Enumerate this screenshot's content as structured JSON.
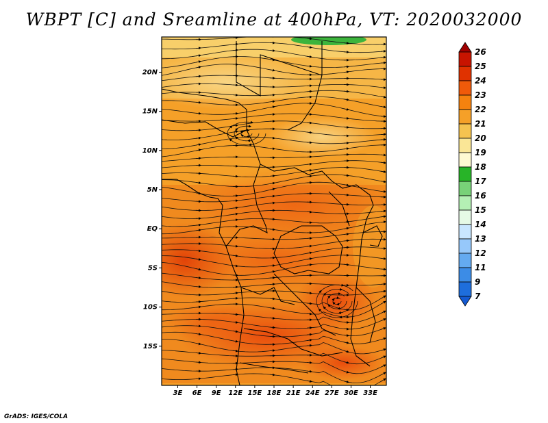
{
  "title": "WBPT [C] and Sreamline at 400hPa, VT: 2020032000",
  "footer": "GrADS: IGES/COLA",
  "map": {
    "region": "Central Africa",
    "lat_range": [
      -20,
      24.5
    ],
    "lon_range": [
      0.5,
      35.5
    ],
    "lat_ticks": [
      {
        "value": 20,
        "label": "20N"
      },
      {
        "value": 15,
        "label": "15N"
      },
      {
        "value": 10,
        "label": "10N"
      },
      {
        "value": 5,
        "label": "5N"
      },
      {
        "value": 0,
        "label": "EQ"
      },
      {
        "value": -5,
        "label": "5S"
      },
      {
        "value": -10,
        "label": "10S"
      },
      {
        "value": -15,
        "label": "15S"
      }
    ],
    "lon_ticks": [
      {
        "value": 3,
        "label": "3E"
      },
      {
        "value": 6,
        "label": "6E"
      },
      {
        "value": 9,
        "label": "9E"
      },
      {
        "value": 12,
        "label": "12E"
      },
      {
        "value": 15,
        "label": "15E"
      },
      {
        "value": 18,
        "label": "18E"
      },
      {
        "value": 21,
        "label": "21E"
      },
      {
        "value": 24,
        "label": "24E"
      },
      {
        "value": 27,
        "label": "27E"
      },
      {
        "value": 30,
        "label": "30E"
      },
      {
        "value": 33,
        "label": "33E"
      }
    ]
  },
  "colorbar": {
    "labels": [
      "26",
      "25",
      "24",
      "23",
      "22",
      "21",
      "20",
      "19",
      "18",
      "17",
      "16",
      "15",
      "14",
      "13",
      "12",
      "11",
      "9",
      "7"
    ],
    "colors": [
      "#a00000",
      "#c81400",
      "#e03200",
      "#f05a0a",
      "#f5820f",
      "#f5a028",
      "#f5c350",
      "#fae696",
      "#fffad2",
      "#28b428",
      "#78d278",
      "#b4f0b4",
      "#e6fae6",
      "#c8e6ff",
      "#96c8fa",
      "#64aaf0",
      "#3c8ce6",
      "#1e6edc",
      "#145ad2"
    ]
  }
}
